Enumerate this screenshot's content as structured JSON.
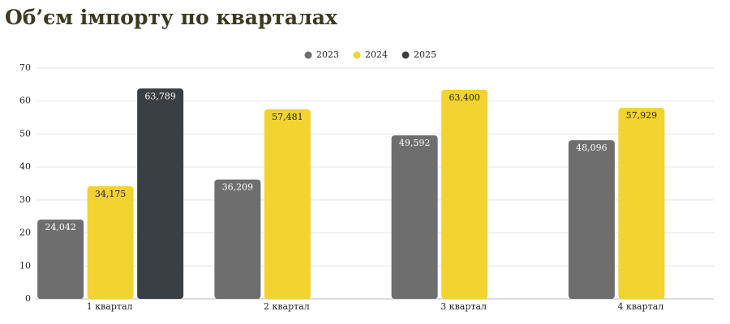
{
  "chart_data": {
    "type": "bar",
    "title": "Об’єм імпорту по кварталах",
    "categories": [
      "1 квартал",
      "2 квартал",
      "3 квартал",
      "4 квартал"
    ],
    "series": [
      {
        "name": "2023",
        "color": "#6e6e6e",
        "values": [
          24.042,
          36.209,
          49.592,
          48.096
        ],
        "value_labels": [
          "24,042",
          "36,209",
          "49,592",
          "48,096"
        ]
      },
      {
        "name": "2024",
        "color": "#f2d32f",
        "values": [
          34.175,
          57.481,
          63.4,
          57.929
        ],
        "value_labels": [
          "34,175",
          "57,481",
          "63,400",
          "57,929"
        ]
      },
      {
        "name": "2025",
        "color": "#393f42",
        "values": [
          63.789,
          null,
          null,
          null
        ],
        "value_labels": [
          "63,789",
          null,
          null,
          null
        ]
      }
    ],
    "ylim": [
      0,
      70
    ],
    "yticks": [
      0,
      10,
      20,
      30,
      40,
      50,
      60,
      70
    ],
    "grid": true,
    "legend": "top"
  }
}
